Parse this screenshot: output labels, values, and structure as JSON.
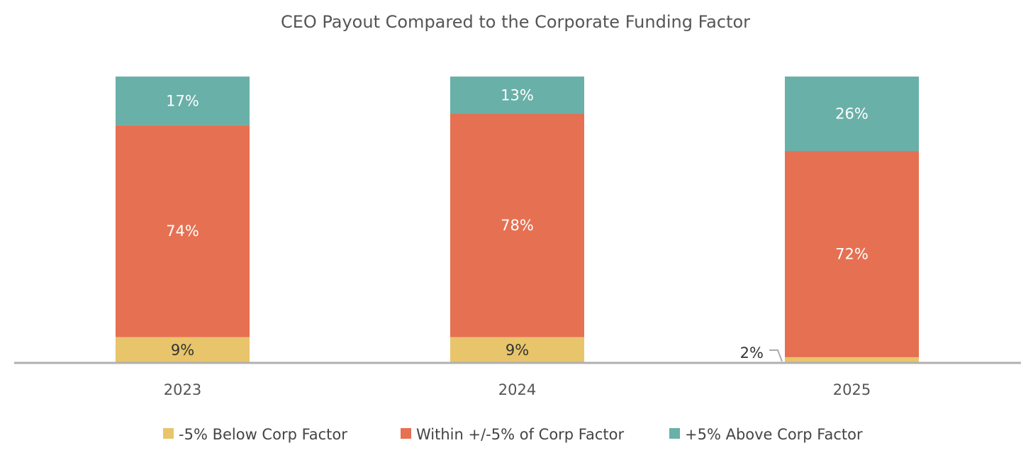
{
  "chart_data": {
    "type": "bar",
    "stacked": true,
    "title": "CEO Payout Compared to the Corporate Funding Factor",
    "xlabel": "",
    "ylabel": "",
    "ylim": [
      0,
      100
    ],
    "grid": false,
    "legend_position": "bottom",
    "categories": [
      "2023",
      "2024",
      "2025"
    ],
    "series": [
      {
        "name": "-5% Below Corp Factor",
        "color": "#e8c46b",
        "values": [
          9,
          9,
          2
        ],
        "labels": [
          "9%",
          "9%",
          "2%"
        ]
      },
      {
        "name": "Within +/-5% of Corp Factor",
        "color": "#e67052",
        "values": [
          74,
          78,
          72
        ],
        "labels": [
          "74%",
          "78%",
          "72%"
        ]
      },
      {
        "name": "+5% Above Corp Factor",
        "color": "#69b0a8",
        "values": [
          17,
          13,
          26
        ],
        "labels": [
          "17%",
          "13%",
          "26%"
        ]
      }
    ]
  }
}
